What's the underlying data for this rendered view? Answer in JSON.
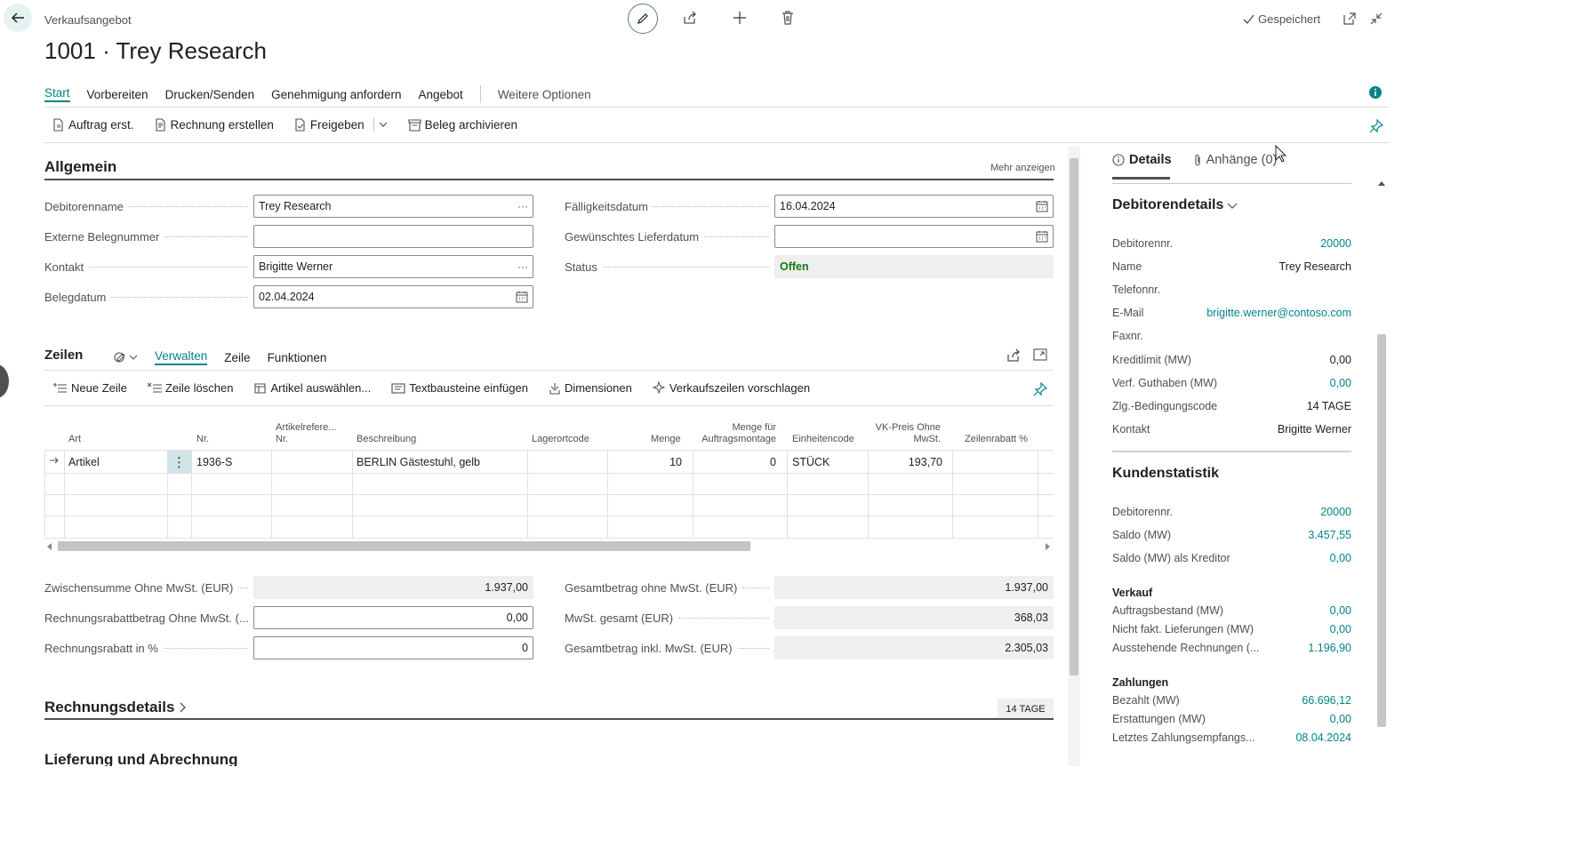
{
  "header": {
    "breadcrumb": "Verkaufsangebot",
    "title": "1001 · Trey Research",
    "saved": "Gespeichert"
  },
  "action_tabs": {
    "start": "Start",
    "prepare": "Vorbereiten",
    "print": "Drucken/Senden",
    "approval": "Genehmigung anfordern",
    "quote": "Angebot",
    "more": "Weitere Optionen"
  },
  "commands": {
    "make_order": "Auftrag erst.",
    "make_invoice": "Rechnung erstellen",
    "release": "Freigeben",
    "archive": "Beleg archivieren"
  },
  "general": {
    "title": "Allgemein",
    "show_more": "Mehr anzeigen",
    "customer_name_label": "Debitorenname",
    "customer_name": "Trey Research",
    "ext_doc_label": "Externe Belegnummer",
    "ext_doc": "",
    "contact_label": "Kontakt",
    "contact": "Brigitte Werner",
    "doc_date_label": "Belegdatum",
    "doc_date": "02.04.2024",
    "due_date_label": "Fälligkeitsdatum",
    "due_date": "16.04.2024",
    "req_delivery_label": "Gewünschtes Lieferdatum",
    "req_delivery": "",
    "status_label": "Status",
    "status": "Offen",
    "status_color": "#107c10"
  },
  "lines": {
    "title": "Zeilen",
    "tabs": {
      "manage": "Verwalten",
      "line": "Zeile",
      "functions": "Funktionen"
    },
    "commands": {
      "new_line": "Neue Zeile",
      "delete_line": "Zeile löschen",
      "select_items": "Artikel auswählen...",
      "insert_text": "Textbausteine einfügen",
      "dimensions": "Dimensionen",
      "suggest_lines": "Verkaufszeilen vorschlagen"
    },
    "columns": {
      "type": "Art",
      "no": "Nr.",
      "item_ref_1": "Artikelrefere...",
      "item_ref_2": "Nr.",
      "description": "Beschreibung",
      "location": "Lagerortcode",
      "quantity": "Menge",
      "atm_1": "Menge für",
      "atm_2": "Auftragsmontage",
      "uom": "Einheitencode",
      "price_1": "VK-Preis Ohne",
      "price_2": "MwSt.",
      "line_discount": "Zeilenrabatt %"
    },
    "rows": [
      {
        "type": "Artikel",
        "no": "1936-S",
        "item_ref": "",
        "description": "BERLIN Gästestuhl, gelb",
        "location": "",
        "quantity": "10",
        "atm": "0",
        "uom": "STÜCK",
        "price": "193,70",
        "line_discount": ""
      }
    ]
  },
  "totals": {
    "subtotal_label": "Zwischensumme Ohne MwSt. (EUR)",
    "subtotal": "1.937,00",
    "inv_disc_amount_label": "Rechnungsrabattbetrag Ohne MwSt. (...",
    "inv_disc_amount": "0,00",
    "inv_disc_pct_label": "Rechnungsrabatt in %",
    "inv_disc_pct": "0",
    "total_excl_label": "Gesamtbetrag ohne MwSt. (EUR)",
    "total_excl": "1.937,00",
    "vat_label": "MwSt. gesamt (EUR)",
    "vat": "368,03",
    "total_incl_label": "Gesamtbetrag inkl. MwSt. (EUR)",
    "total_incl": "2.305,03"
  },
  "invoice_details": {
    "title": "Rechnungsdetails",
    "badge": "14 TAGE"
  },
  "next_section": {
    "title": "Lieferung und Abrechnung"
  },
  "factbox": {
    "tabs": {
      "details": "Details",
      "attachments": "Anhänge (0)"
    },
    "customer_details": {
      "title": "Debitorendetails",
      "rows": [
        {
          "label": "Debitorennr.",
          "value": "20000",
          "link": true
        },
        {
          "label": "Name",
          "value": "Trey Research",
          "link": false
        },
        {
          "label": "Telefonnr.",
          "value": "",
          "link": false
        },
        {
          "label": "E-Mail",
          "value": "brigitte.werner@contoso.com",
          "link": true
        },
        {
          "label": "Faxnr.",
          "value": "",
          "link": false
        },
        {
          "label": "Kreditlimit (MW)",
          "value": "0,00",
          "link": false
        },
        {
          "label": "Verf. Guthaben (MW)",
          "value": "0,00",
          "link": true
        },
        {
          "label": "Zlg.-Bedingungscode",
          "value": "14 TAGE",
          "link": false
        },
        {
          "label": "Kontakt",
          "value": "Brigitte Werner",
          "link": false
        }
      ]
    },
    "customer_stats": {
      "title": "Kundenstatistik",
      "rows": [
        {
          "label": "Debitorennr.",
          "value": "20000"
        },
        {
          "label": "Saldo (MW)",
          "value": "3.457,55"
        },
        {
          "label": "Saldo (MW) als Kreditor",
          "value": "0,00"
        }
      ],
      "sales_title": "Verkauf",
      "sales": [
        {
          "label": "Auftragsbestand (MW)",
          "value": "0,00"
        },
        {
          "label": "Nicht fakt. Lieferungen (MW)",
          "value": "0,00"
        },
        {
          "label": "Ausstehende Rechnungen (...",
          "value": "1.196,90"
        }
      ],
      "payments_title": "Zahlungen",
      "payments": [
        {
          "label": "Bezahlt (MW)",
          "value": "66.696,12"
        },
        {
          "label": "Erstattungen (MW)",
          "value": "0,00"
        },
        {
          "label": "Letztes Zahlungsempfangs...",
          "value": "08.04.2024"
        }
      ]
    }
  },
  "colors": {
    "accent": "#008489",
    "status_open": "#107c10",
    "text": "#212121"
  }
}
